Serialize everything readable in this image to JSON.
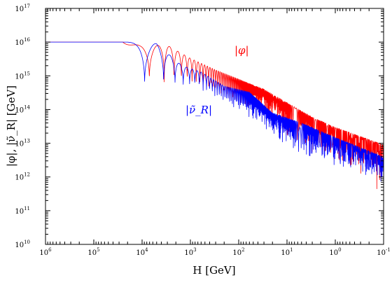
{
  "chart_data": {
    "type": "line",
    "xlabel": "H [GeV]",
    "ylabel": "|φ|, |ν̃_R| [GeV]",
    "x_scale": "log",
    "y_scale": "log",
    "x_reversed": true,
    "xlim": [
      1000000,
      0.1
    ],
    "ylim": [
      10000000000.0,
      1e+17
    ],
    "grid": false,
    "x_ticks": [
      {
        "value": 1000000,
        "base": "10",
        "exp": "6"
      },
      {
        "value": 100000,
        "base": "10",
        "exp": "5"
      },
      {
        "value": 10000,
        "base": "10",
        "exp": "4"
      },
      {
        "value": 1000,
        "base": "10",
        "exp": "3"
      },
      {
        "value": 100,
        "base": "10",
        "exp": "2"
      },
      {
        "value": 10,
        "base": "10",
        "exp": "1"
      },
      {
        "value": 1,
        "base": "10",
        "exp": "0"
      },
      {
        "value": 0.1,
        "base": "10",
        "exp": "-1"
      }
    ],
    "y_ticks": [
      {
        "value": 10000000000.0,
        "base": "10",
        "exp": "10"
      },
      {
        "value": 100000000000.0,
        "base": "10",
        "exp": "11"
      },
      {
        "value": 1000000000000.0,
        "base": "10",
        "exp": "12"
      },
      {
        "value": 10000000000000.0,
        "base": "10",
        "exp": "13"
      },
      {
        "value": 100000000000000.0,
        "base": "10",
        "exp": "14"
      },
      {
        "value": 1000000000000000.0,
        "base": "10",
        "exp": "15"
      },
      {
        "value": 1e+16,
        "base": "10",
        "exp": "16"
      },
      {
        "value": 1e+17,
        "base": "10",
        "exp": "17"
      }
    ],
    "series": [
      {
        "name": "|φ|",
        "color": "#ff0000",
        "plateau": 1e+16,
        "onset_H": 25000,
        "envelope_upper": [
          [
            3000,
            8000000000000000.0
          ],
          [
            1000,
            3300000000000000.0
          ],
          [
            300,
            1500000000000000.0
          ],
          [
            100,
            800000000000000.0
          ],
          [
            30,
            400000000000000.0
          ],
          [
            10,
            160000000000000.0
          ],
          [
            3,
            60000000000000.0
          ],
          [
            1,
            30000000000000.0
          ],
          [
            0.1,
            9000000000000.0
          ]
        ],
        "envelope_lower": [
          [
            1300,
            600000000000000.0
          ],
          [
            350,
            300000000000000.0
          ],
          [
            120,
            130000000000000.0
          ],
          [
            40,
            50000000000000.0
          ],
          [
            10,
            12000000000000.0
          ],
          [
            3,
            5000000000000.0
          ],
          [
            1,
            2000000000000.0
          ],
          [
            0.1,
            250000000000.0
          ]
        ]
      },
      {
        "name": "|ν̃_R|",
        "color": "#0000ff",
        "plateau": 1e+16,
        "onset_H": 20000,
        "envelope_upper": [
          [
            5000,
            9000000000000000.0
          ],
          [
            1500,
            2000000000000000.0
          ],
          [
            600,
            1300000000000000.0
          ],
          [
            200,
            500000000000000.0
          ],
          [
            60,
            330000000000000.0
          ],
          [
            20,
            80000000000000.0
          ],
          [
            5,
            40000000000000.0
          ],
          [
            1,
            15000000000000.0
          ],
          [
            0.1,
            4000000000000.0
          ]
        ],
        "envelope_lower": [
          [
            800,
            450000000000000.0
          ],
          [
            300,
            200000000000000.0
          ],
          [
            100,
            70000000000000.0
          ],
          [
            30,
            25000000000000.0
          ],
          [
            10,
            5000000000000.0
          ],
          [
            3,
            3000000000000.0
          ],
          [
            1,
            1500000000000.0
          ],
          [
            0.1,
            500000000000.0
          ]
        ]
      }
    ]
  }
}
